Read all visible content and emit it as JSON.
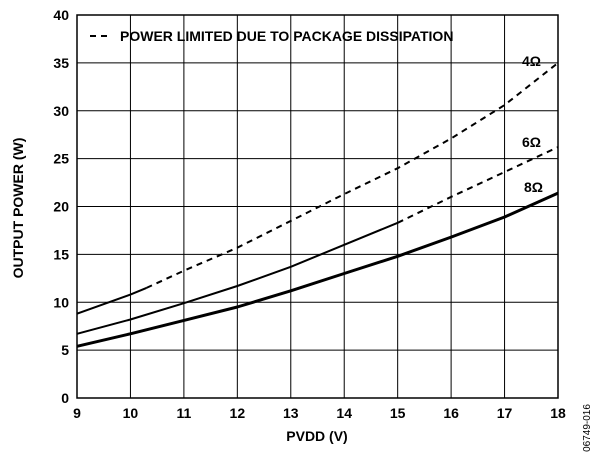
{
  "chart_data": {
    "type": "line",
    "xlabel": "PVDD (V)",
    "ylabel": "OUTPUT POWER (W)",
    "xlim": [
      9,
      18
    ],
    "ylim": [
      0,
      40
    ],
    "xticks": [
      "9",
      "10",
      "11",
      "12",
      "13",
      "14",
      "15",
      "16",
      "17",
      "18"
    ],
    "yticks": [
      "0",
      "5",
      "10",
      "15",
      "20",
      "25",
      "30",
      "35",
      "40"
    ],
    "grid": true,
    "legend": {
      "position": "top",
      "entries": [
        "POWER LIMITED DUE TO PACKAGE DISSIPATION"
      ]
    },
    "figure_id": "06749-016",
    "series": [
      {
        "name": "4Ω",
        "solid": {
          "x": [
            9,
            10,
            10.3
          ],
          "y": [
            8.8,
            10.8,
            11.5
          ]
        },
        "dashed": {
          "x": [
            10.3,
            11,
            12,
            13,
            14,
            15,
            16,
            17,
            18
          ],
          "y": [
            11.5,
            13.3,
            15.7,
            18.5,
            21.3,
            24.0,
            27.1,
            30.6,
            35.0
          ]
        }
      },
      {
        "name": "6Ω",
        "solid": {
          "x": [
            9,
            10,
            11,
            12,
            13,
            14,
            15
          ],
          "y": [
            6.7,
            8.2,
            9.9,
            11.7,
            13.7,
            16.0,
            18.3
          ]
        },
        "dashed": {
          "x": [
            15,
            16,
            17,
            18
          ],
          "y": [
            18.3,
            21.0,
            23.6,
            26.2
          ]
        }
      },
      {
        "name": "8Ω",
        "solid": {
          "x": [
            9,
            10,
            11,
            12,
            13,
            14,
            15,
            16,
            17,
            18
          ],
          "y": [
            5.4,
            6.7,
            8.1,
            9.5,
            11.2,
            13.0,
            14.8,
            16.8,
            18.9,
            21.4
          ]
        },
        "dashed": {
          "x": [],
          "y": []
        }
      }
    ]
  }
}
